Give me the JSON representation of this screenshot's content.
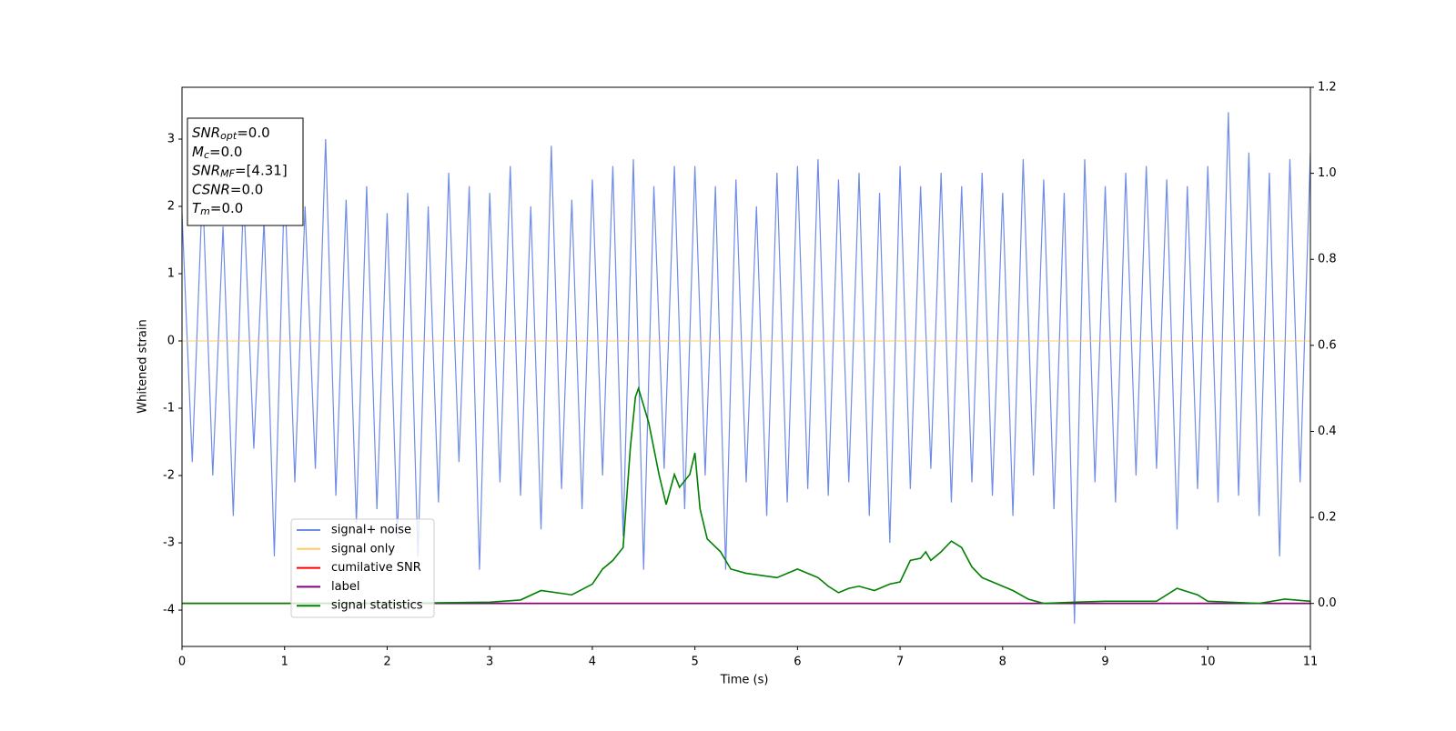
{
  "chart_data": {
    "type": "line",
    "xlabel": "Time (s)",
    "ylabel": "Whitened strain",
    "xlim": [
      0,
      11
    ],
    "xticks": [
      0,
      1,
      2,
      3,
      4,
      5,
      6,
      7,
      8,
      9,
      10,
      11
    ],
    "ylim": [
      -4.54,
      3.77
    ],
    "yticks": [
      -4,
      -3,
      -2,
      -1,
      0,
      1,
      2,
      3
    ],
    "y2lim": [
      -0.1,
      1.2
    ],
    "y2ticks": [
      0.0,
      0.2,
      0.4,
      0.6,
      0.8,
      1.0,
      1.2
    ],
    "legend": "lower left",
    "annotations": [
      {
        "name": "SNR",
        "sub": "opt",
        "rest": "=0.0"
      },
      {
        "name": "M",
        "sub": "c",
        "rest": "=0.0"
      },
      {
        "name": "SNR",
        "sub": "MF",
        "rest": "=[4.31]"
      },
      {
        "name": "CSNR",
        "sub": null,
        "rest": "=0.0"
      },
      {
        "name": "T",
        "sub": "m",
        "rest": "=0.0"
      }
    ],
    "series": [
      {
        "name": "signal+ noise",
        "color": "#6f8ce6",
        "x": [
          0,
          0.1,
          0.2,
          0.3,
          0.4,
          0.5,
          0.6,
          0.7,
          0.8,
          0.9,
          1,
          1.1,
          1.2,
          1.3,
          1.4,
          1.5,
          1.6,
          1.7,
          1.8,
          1.9,
          2,
          2.1,
          2.2,
          2.3,
          2.4,
          2.5,
          2.6,
          2.7,
          2.8,
          2.9,
          3,
          3.1,
          3.2,
          3.3,
          3.4,
          3.5,
          3.6,
          3.7,
          3.8,
          3.9,
          4,
          4.1,
          4.2,
          4.3,
          4.4,
          4.5,
          4.6,
          4.7,
          4.8,
          4.9,
          5,
          5.1,
          5.2,
          5.3,
          5.4,
          5.5,
          5.6,
          5.7,
          5.8,
          5.9,
          6,
          6.1,
          6.2,
          6.3,
          6.4,
          6.5,
          6.6,
          6.7,
          6.8,
          6.9,
          7,
          7.1,
          7.2,
          7.3,
          7.4,
          7.5,
          7.6,
          7.7,
          7.8,
          7.9,
          8,
          8.1,
          8.2,
          8.3,
          8.4,
          8.5,
          8.6,
          8.7,
          8.8,
          8.9,
          9,
          9.1,
          9.2,
          9.3,
          9.4,
          9.5,
          9.6,
          9.7,
          9.8,
          9.9,
          10,
          10.1,
          10.2,
          10.3,
          10.4,
          10.5,
          10.6,
          10.7,
          10.8,
          10.9,
          11
        ],
        "values": [
          1.9,
          -1.8,
          2.3,
          -2.0,
          1.7,
          -2.6,
          2.2,
          -1.6,
          1.8,
          -3.2,
          2.4,
          -2.1,
          2.0,
          -1.9,
          3.0,
          -2.3,
          2.1,
          -2.7,
          2.3,
          -2.5,
          1.9,
          -2.9,
          2.2,
          -3.2,
          2.0,
          -2.4,
          2.5,
          -1.8,
          2.3,
          -3.4,
          2.2,
          -2.1,
          2.6,
          -2.3,
          2.0,
          -2.8,
          2.9,
          -2.2,
          2.1,
          -2.5,
          2.4,
          -2.0,
          2.6,
          -2.9,
          2.7,
          -3.4,
          2.3,
          -1.9,
          2.6,
          -2.5,
          2.6,
          -2.0,
          2.3,
          -3.4,
          2.4,
          -2.1,
          2.0,
          -2.6,
          2.5,
          -2.4,
          2.6,
          -2.2,
          2.7,
          -2.3,
          2.4,
          -2.1,
          2.5,
          -2.6,
          2.2,
          -3.0,
          2.6,
          -2.2,
          2.3,
          -1.9,
          2.5,
          -2.4,
          2.3,
          -2.1,
          2.5,
          -2.3,
          2.2,
          -2.6,
          2.7,
          -2.0,
          2.4,
          -2.5,
          2.2,
          -4.2,
          2.7,
          -2.1,
          2.3,
          -2.4,
          2.5,
          -2.0,
          2.6,
          -1.9,
          2.4,
          -2.8,
          2.3,
          -2.2,
          2.6,
          -2.4,
          3.4,
          -2.3,
          2.8,
          -2.6,
          2.5,
          -3.2,
          2.7,
          -2.1,
          2.8
        ]
      },
      {
        "name": "signal only",
        "color": "#ffc864",
        "x": [
          0,
          11
        ],
        "values": [
          0,
          0
        ]
      },
      {
        "name": "cumilative SNR",
        "color": "#ff0000",
        "axis": "y2",
        "x": [
          0,
          11
        ],
        "values": [
          0,
          0
        ]
      },
      {
        "name": "label",
        "color": "#800080",
        "axis": "y2",
        "x": [
          0,
          11
        ],
        "values": [
          0,
          0
        ]
      },
      {
        "name": "signal statistics",
        "color": "#008000",
        "axis": "y2",
        "x": [
          0,
          0.5,
          1,
          2,
          3,
          3.3,
          3.5,
          3.8,
          4.0,
          4.1,
          4.2,
          4.3,
          4.37,
          4.42,
          4.45,
          4.55,
          4.65,
          4.72,
          4.8,
          4.85,
          4.95,
          5.0,
          5.05,
          5.12,
          5.25,
          5.35,
          5.5,
          5.8,
          6.0,
          6.1,
          6.2,
          6.3,
          6.4,
          6.5,
          6.6,
          6.75,
          6.9,
          7.0,
          7.1,
          7.2,
          7.25,
          7.3,
          7.4,
          7.5,
          7.6,
          7.7,
          7.8,
          7.95,
          8.1,
          8.25,
          8.4,
          8.7,
          9.0,
          9.5,
          9.7,
          9.9,
          10.0,
          10.5,
          10.75,
          11
        ],
        "values": [
          0.0,
          0.0,
          0.0,
          0.0,
          0.003,
          0.008,
          0.03,
          0.02,
          0.045,
          0.08,
          0.1,
          0.13,
          0.36,
          0.48,
          0.5,
          0.42,
          0.3,
          0.23,
          0.3,
          0.27,
          0.3,
          0.35,
          0.22,
          0.15,
          0.12,
          0.08,
          0.07,
          0.06,
          0.08,
          0.07,
          0.06,
          0.04,
          0.025,
          0.035,
          0.04,
          0.03,
          0.045,
          0.05,
          0.1,
          0.105,
          0.12,
          0.1,
          0.12,
          0.145,
          0.13,
          0.085,
          0.06,
          0.045,
          0.03,
          0.01,
          0.0,
          0.003,
          0.005,
          0.005,
          0.035,
          0.02,
          0.005,
          0.0,
          0.01,
          0.005
        ]
      }
    ]
  }
}
